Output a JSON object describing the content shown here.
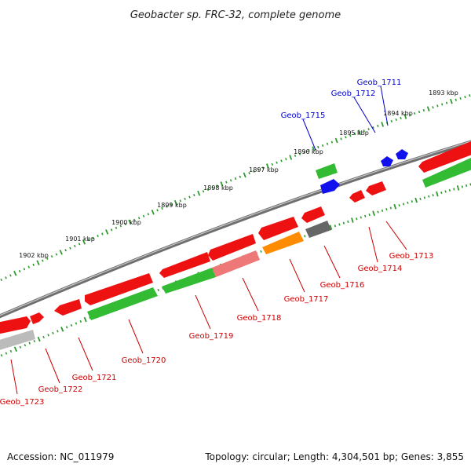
{
  "title": "Geobacter sp. FRC-32, complete genome",
  "accession": "Accession: NC_011979",
  "topology": "Topology: circular; Length: 4,304,501 bp; Genes: 3,855",
  "colors": {
    "backbone": "#8a8a8a",
    "scale_dots": "#2e9a2e",
    "label_top": "#0000cc",
    "label_bottom": "#cc0000",
    "red": "#ee1111",
    "green": "#33bb33",
    "blue": "#1111ee",
    "pink": "#ee7777",
    "orange": "#ff8c00",
    "darkgray": "#666666",
    "lightgray": "#bbbbbb"
  },
  "scale_labels": [
    "1893 kbp",
    "1894 kbp",
    "1895 kbp",
    "1896 kbp",
    "1897 kbp",
    "1898 kbp",
    "1899 kbp",
    "1900 kbp",
    "1901 kbp",
    "1902 kbp"
  ],
  "genes": [
    {
      "name": "Geob_1711",
      "side": "top"
    },
    {
      "name": "Geob_1712",
      "side": "top"
    },
    {
      "name": "Geob_1713",
      "side": "bottom"
    },
    {
      "name": "Geob_1714",
      "side": "bottom"
    },
    {
      "name": "Geob_1715",
      "side": "top"
    },
    {
      "name": "Geob_1716",
      "side": "bottom"
    },
    {
      "name": "Geob_1717",
      "side": "bottom"
    },
    {
      "name": "Geob_1718",
      "side": "bottom"
    },
    {
      "name": "Geob_1719",
      "side": "bottom"
    },
    {
      "name": "Geob_1720",
      "side": "bottom"
    },
    {
      "name": "Geob_1721",
      "side": "bottom"
    },
    {
      "name": "Geob_1722",
      "side": "bottom"
    },
    {
      "name": "Geob_1723",
      "side": "bottom"
    }
  ]
}
